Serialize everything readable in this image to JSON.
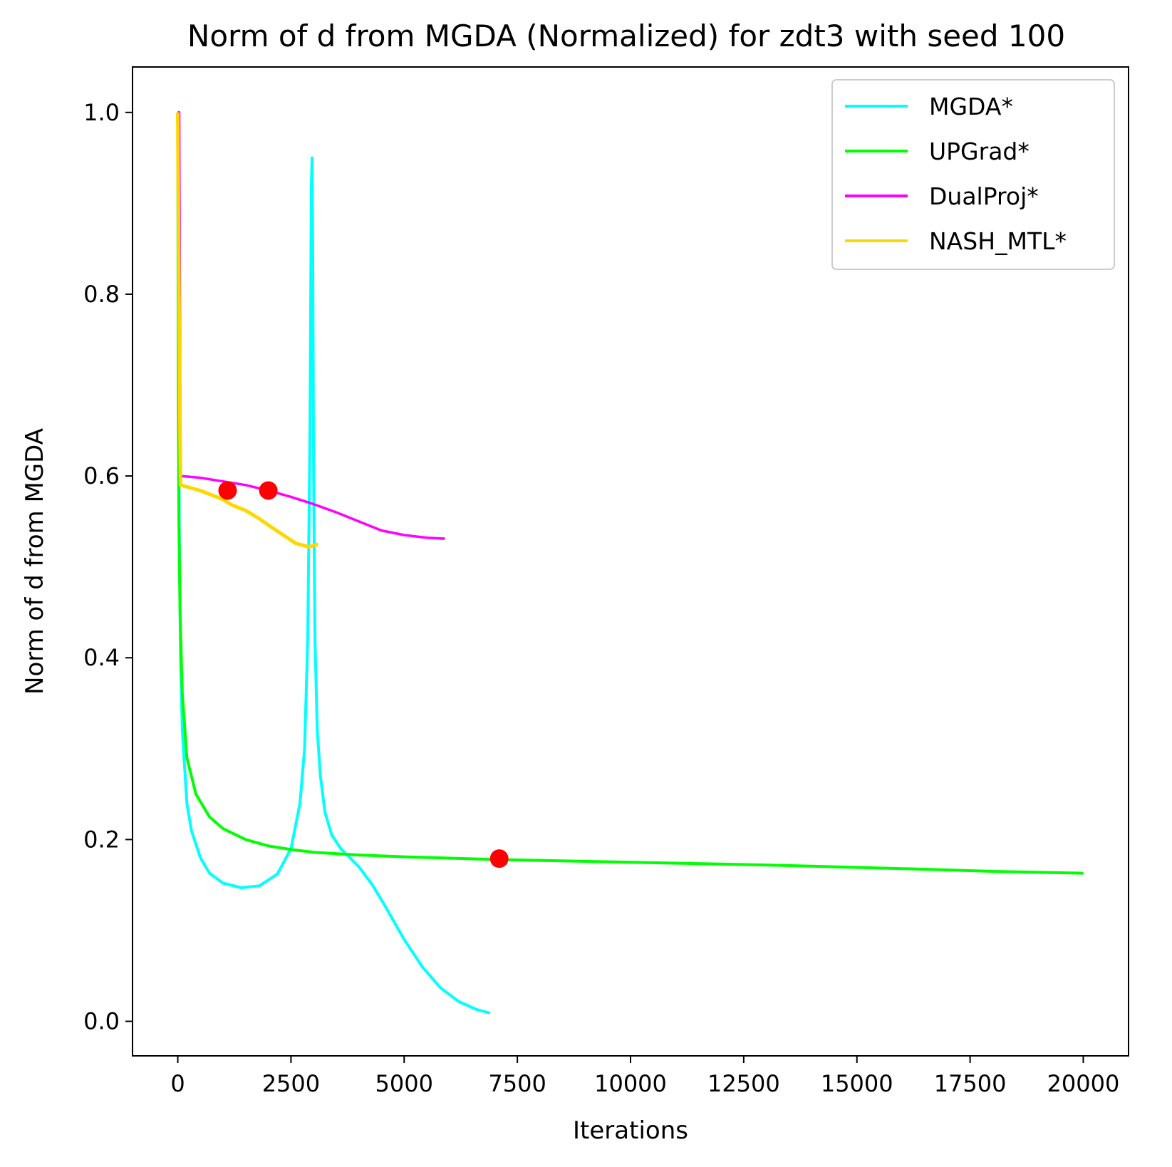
{
  "chart_data": {
    "type": "line",
    "title": "Norm of d from MGDA (Normalized) for zdt3 with seed 100",
    "xlabel": "Iterations",
    "ylabel": "Norm of d from MGDA",
    "xlim": [
      -1000,
      21000
    ],
    "ylim": [
      -0.038,
      1.05
    ],
    "xticks": [
      0,
      2500,
      5000,
      7500,
      10000,
      12500,
      15000,
      17500,
      20000
    ],
    "yticks": [
      0.0,
      0.2,
      0.4,
      0.6,
      0.8,
      1.0
    ],
    "xtick_labels": [
      "0",
      "2500",
      "5000",
      "7500",
      "10000",
      "12500",
      "15000",
      "17500",
      "20000"
    ],
    "ytick_labels": [
      "0.0",
      "0.2",
      "0.4",
      "0.6",
      "0.8",
      "1.0"
    ],
    "grid": false,
    "legend_position": "top-right",
    "series": [
      {
        "name": "MGDA*",
        "color": "#00FFFF",
        "x": [
          0,
          15,
          30,
          60,
          100,
          200,
          300,
          500,
          700,
          1000,
          1400,
          1800,
          2200,
          2500,
          2700,
          2800,
          2870,
          2920,
          2950,
          2965,
          2980,
          3000,
          3030,
          3080,
          3150,
          3250,
          3400,
          3600,
          3800,
          4000,
          4300,
          4600,
          5000,
          5400,
          5800,
          6200,
          6600,
          6900
        ],
        "y": [
          1.0,
          1.0,
          0.55,
          0.4,
          0.32,
          0.24,
          0.21,
          0.18,
          0.163,
          0.152,
          0.147,
          0.149,
          0.162,
          0.19,
          0.24,
          0.3,
          0.42,
          0.65,
          0.92,
          0.95,
          0.85,
          0.6,
          0.42,
          0.32,
          0.27,
          0.23,
          0.205,
          0.19,
          0.18,
          0.17,
          0.15,
          0.125,
          0.09,
          0.06,
          0.037,
          0.022,
          0.013,
          0.009
        ]
      },
      {
        "name": "UPGrad*",
        "color": "#00FF00",
        "x": [
          0,
          10,
          25,
          50,
          100,
          200,
          400,
          700,
          1000,
          1500,
          2000,
          2500,
          3000,
          4000,
          5000,
          7000,
          10000,
          13000,
          16000,
          18000,
          20000
        ],
        "y": [
          1.0,
          0.7,
          0.55,
          0.45,
          0.36,
          0.29,
          0.25,
          0.225,
          0.212,
          0.2,
          0.193,
          0.189,
          0.186,
          0.183,
          0.181,
          0.178,
          0.175,
          0.172,
          0.168,
          0.165,
          0.163
        ]
      },
      {
        "name": "DualProj*",
        "color": "#FF00FF",
        "x": [
          0,
          30,
          60,
          500,
          1000,
          1500,
          2000,
          2500,
          3000,
          3500,
          4000,
          4500,
          5000,
          5500,
          5900
        ],
        "y": [
          1.0,
          1.0,
          0.6,
          0.598,
          0.594,
          0.59,
          0.584,
          0.577,
          0.569,
          0.56,
          0.55,
          0.54,
          0.535,
          0.532,
          0.531
        ]
      },
      {
        "name": "NASH_MTL*",
        "color": "#FFD700",
        "x": [
          0,
          20,
          40,
          60,
          200,
          500,
          800,
          1000,
          1200,
          1500,
          1800,
          2000,
          2300,
          2600,
          2900,
          3100
        ],
        "y": [
          1.0,
          0.85,
          0.7,
          0.59,
          0.588,
          0.584,
          0.578,
          0.574,
          0.568,
          0.562,
          0.553,
          0.546,
          0.536,
          0.526,
          0.522,
          0.525
        ]
      }
    ],
    "markers": {
      "color": "#FF0000",
      "points": [
        {
          "x": 1100,
          "y": 0.584
        },
        {
          "x": 2000,
          "y": 0.584
        },
        {
          "x": 7100,
          "y": 0.179
        }
      ]
    }
  }
}
